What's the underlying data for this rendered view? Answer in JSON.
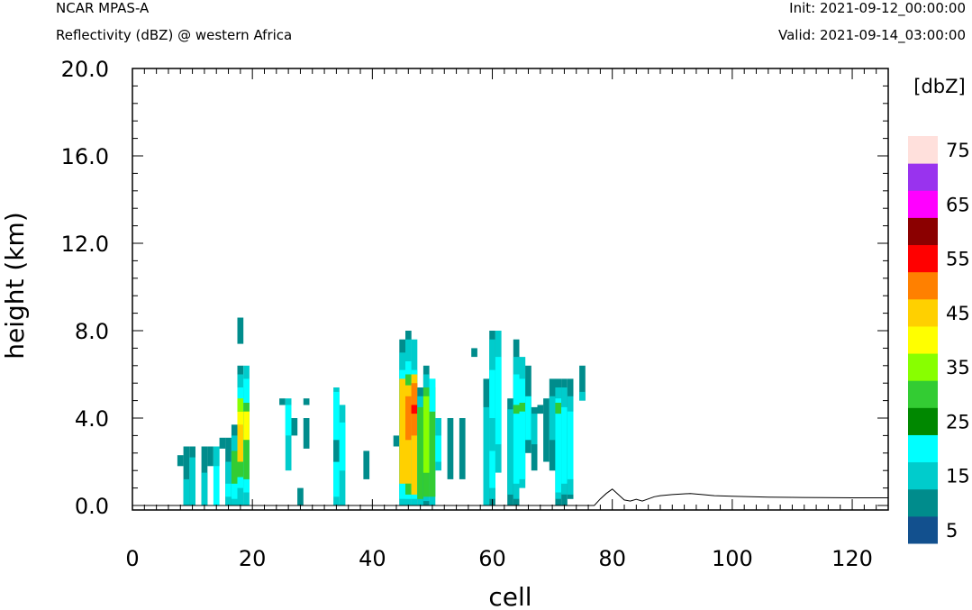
{
  "header": {
    "model": "NCAR MPAS-A",
    "field": "Reflectivity (dBZ) @ western Africa",
    "init": "Init: 2021-09-12_00:00:00",
    "valid": "Valid: 2021-09-14_03:00:00"
  },
  "chart_data": {
    "type": "heatmap",
    "xlabel": "cell",
    "ylabel": "height (km)",
    "xlim": [
      0,
      126
    ],
    "ylim": [
      0,
      20
    ],
    "x_ticks": [
      "0",
      "20",
      "40",
      "60",
      "80",
      "100",
      "120"
    ],
    "y_ticks": [
      "0.0",
      "4.0",
      "8.0",
      "12.0",
      "16.0",
      "20.0"
    ],
    "colorbar": {
      "unit_label": "[dbZ]",
      "labels": [
        "5",
        "15",
        "25",
        "35",
        "45",
        "55",
        "65",
        "75"
      ],
      "levels": [
        5,
        10,
        15,
        20,
        25,
        30,
        35,
        40,
        45,
        50,
        55,
        60,
        65,
        70,
        75
      ],
      "colors": [
        "#12508e",
        "#008c8c",
        "#00cccc",
        "#00ffff",
        "#008800",
        "#33cc33",
        "#88ff00",
        "#ffff00",
        "#ffd000",
        "#ff8000",
        "#ff0000",
        "#8b0000",
        "#ff00ff",
        "#9933ee",
        "#ffe0dc"
      ]
    },
    "columns": [
      {
        "x": 8,
        "segs": [
          [
            1.8,
            2.3,
            1
          ]
        ]
      },
      {
        "x": 9,
        "segs": [
          [
            0,
            2.7,
            1
          ],
          [
            0,
            1.2,
            2
          ]
        ]
      },
      {
        "x": 10,
        "segs": [
          [
            0,
            2.7,
            1
          ],
          [
            0,
            2.2,
            2
          ]
        ]
      },
      {
        "x": 12,
        "segs": [
          [
            0,
            2.7,
            1
          ],
          [
            0,
            1.5,
            2
          ]
        ]
      },
      {
        "x": 13,
        "segs": [
          [
            1.8,
            2.7,
            1
          ]
        ]
      },
      {
        "x": 14,
        "segs": [
          [
            0,
            2.7,
            3
          ],
          [
            1.8,
            2.7,
            2
          ]
        ]
      },
      {
        "x": 15,
        "segs": [
          [
            2.6,
            3.1,
            1
          ]
        ]
      },
      {
        "x": 16,
        "segs": [
          [
            0,
            3.1,
            1
          ],
          [
            0,
            2.0,
            2
          ],
          [
            0.4,
            1.0,
            3
          ]
        ]
      },
      {
        "x": 17,
        "segs": [
          [
            0,
            3.7,
            1
          ],
          [
            0,
            3.2,
            2
          ],
          [
            0.3,
            2.4,
            3
          ],
          [
            1.0,
            2.5,
            5
          ]
        ]
      },
      {
        "x": 18,
        "segs": [
          [
            0,
            6.4,
            1
          ],
          [
            0,
            6.0,
            2
          ],
          [
            0.8,
            5.4,
            3
          ],
          [
            1.3,
            4.5,
            5
          ],
          [
            2.0,
            4.0,
            8
          ],
          [
            3.7,
            4.3,
            7
          ],
          [
            4.3,
            4.9,
            6
          ]
        ]
      },
      {
        "x": 18,
        "segs": [
          [
            7.4,
            8.6,
            1
          ]
        ]
      },
      {
        "x": 19,
        "segs": [
          [
            0,
            6.4,
            2
          ],
          [
            0.6,
            5.8,
            3
          ],
          [
            1.2,
            4.7,
            5
          ],
          [
            3.0,
            4.3,
            7
          ]
        ]
      },
      {
        "x": 25,
        "segs": [
          [
            4.6,
            4.9,
            1
          ]
        ]
      },
      {
        "x": 26,
        "segs": [
          [
            1.6,
            4.9,
            2
          ],
          [
            3.2,
            4.6,
            3
          ]
        ]
      },
      {
        "x": 27,
        "segs": [
          [
            3.2,
            4.0,
            1
          ]
        ]
      },
      {
        "x": 28,
        "segs": [
          [
            0,
            0.8,
            1
          ]
        ]
      },
      {
        "x": 29,
        "segs": [
          [
            2.6,
            4.0,
            1
          ],
          [
            4.6,
            4.9,
            1
          ]
        ]
      },
      {
        "x": 34,
        "segs": [
          [
            0,
            5.4,
            2
          ],
          [
            0.4,
            5.2,
            3
          ],
          [
            2.0,
            3.0,
            1
          ]
        ]
      },
      {
        "x": 35,
        "segs": [
          [
            0,
            4.6,
            2
          ],
          [
            1.6,
            3.8,
            3
          ]
        ]
      },
      {
        "x": 39,
        "segs": [
          [
            1.2,
            2.5,
            1
          ]
        ]
      },
      {
        "x": 44,
        "segs": [
          [
            2.7,
            3.2,
            1
          ]
        ]
      },
      {
        "x": 45,
        "segs": [
          [
            0,
            7.6,
            1
          ],
          [
            0,
            7.0,
            2
          ],
          [
            0.3,
            6.2,
            3
          ],
          [
            1.0,
            5.8,
            8
          ]
        ]
      },
      {
        "x": 46,
        "segs": [
          [
            0,
            8.0,
            1
          ],
          [
            0,
            7.6,
            2
          ],
          [
            0.3,
            6.6,
            3
          ],
          [
            0.5,
            6.0,
            5
          ],
          [
            1.0,
            5.5,
            8
          ],
          [
            3.0,
            5.0,
            9
          ]
        ]
      },
      {
        "x": 47,
        "segs": [
          [
            0,
            7.6,
            2
          ],
          [
            0.3,
            6.2,
            3
          ],
          [
            0.5,
            6.0,
            8
          ],
          [
            3.2,
            5.6,
            9
          ],
          [
            4.2,
            4.6,
            10
          ]
        ]
      },
      {
        "x": 48,
        "segs": [
          [
            0,
            5.4,
            1
          ],
          [
            0,
            5.0,
            2
          ],
          [
            0.3,
            4.5,
            5
          ]
        ]
      },
      {
        "x": 49,
        "segs": [
          [
            0,
            6.4,
            1
          ],
          [
            0.2,
            6.0,
            2
          ],
          [
            0.4,
            5.4,
            5
          ],
          [
            1.5,
            5.0,
            6
          ]
        ]
      },
      {
        "x": 50,
        "segs": [
          [
            0,
            5.8,
            2
          ],
          [
            0.4,
            5.4,
            5
          ],
          [
            4.3,
            5.8,
            3
          ]
        ]
      },
      {
        "x": 51,
        "segs": [
          [
            1.6,
            4.0,
            2
          ],
          [
            2.0,
            3.2,
            3
          ]
        ]
      },
      {
        "x": 53,
        "segs": [
          [
            1.2,
            4.0,
            1
          ]
        ]
      },
      {
        "x": 55,
        "segs": [
          [
            1.2,
            4.0,
            1
          ]
        ]
      },
      {
        "x": 57,
        "segs": [
          [
            6.8,
            7.2,
            1
          ]
        ]
      },
      {
        "x": 59,
        "segs": [
          [
            0,
            5.8,
            1
          ],
          [
            0,
            4.5,
            2
          ]
        ]
      },
      {
        "x": 60,
        "segs": [
          [
            0,
            8.0,
            1
          ],
          [
            0.3,
            7.6,
            2
          ],
          [
            0.8,
            6.2,
            3
          ],
          [
            2.5,
            4.0,
            2
          ]
        ]
      },
      {
        "x": 61,
        "segs": [
          [
            1.5,
            8.0,
            2
          ],
          [
            2.8,
            6.8,
            3
          ]
        ]
      },
      {
        "x": 63,
        "segs": [
          [
            0,
            4.9,
            1
          ],
          [
            0.5,
            4.4,
            2
          ]
        ]
      },
      {
        "x": 64,
        "segs": [
          [
            0,
            7.6,
            1
          ],
          [
            0.3,
            6.8,
            2
          ],
          [
            1.0,
            6.0,
            3
          ],
          [
            4.2,
            4.6,
            5
          ]
        ]
      },
      {
        "x": 65,
        "segs": [
          [
            0.8,
            6.8,
            2
          ],
          [
            1.2,
            5.8,
            3
          ],
          [
            4.3,
            4.7,
            5
          ]
        ]
      },
      {
        "x": 66,
        "segs": [
          [
            2.4,
            6.4,
            1
          ],
          [
            3.0,
            5.0,
            3
          ]
        ]
      },
      {
        "x": 67,
        "segs": [
          [
            1.6,
            4.5,
            1
          ],
          [
            2.8,
            4.2,
            2
          ]
        ]
      },
      {
        "x": 68,
        "segs": [
          [
            4.2,
            4.6,
            1
          ]
        ]
      },
      {
        "x": 69,
        "segs": [
          [
            2.0,
            4.9,
            1
          ]
        ]
      },
      {
        "x": 70,
        "segs": [
          [
            1.6,
            5.8,
            1
          ],
          [
            3.0,
            5.0,
            2
          ]
        ]
      },
      {
        "x": 71,
        "segs": [
          [
            0,
            5.8,
            1
          ],
          [
            0.3,
            5.4,
            2
          ],
          [
            0.6,
            4.9,
            3
          ],
          [
            4.2,
            4.7,
            5
          ]
        ]
      },
      {
        "x": 72,
        "segs": [
          [
            0,
            5.8,
            1
          ],
          [
            0.5,
            5.4,
            2
          ],
          [
            1.0,
            4.5,
            3
          ]
        ]
      },
      {
        "x": 73,
        "segs": [
          [
            0.3,
            5.8,
            1
          ],
          [
            0.5,
            5.0,
            2
          ],
          [
            1.2,
            4.3,
            3
          ]
        ]
      },
      {
        "x": 75,
        "segs": [
          [
            4.8,
            6.4,
            1
          ],
          [
            4.8,
            5.2,
            2
          ]
        ]
      }
    ],
    "terrain": {
      "x": [
        0,
        77,
        78,
        79,
        80,
        81,
        82,
        83,
        84,
        85,
        86,
        87,
        88,
        90,
        93,
        95,
        97,
        100,
        103,
        106,
        110,
        115,
        120,
        126
      ],
      "y": [
        0,
        0,
        0.3,
        0.55,
        0.75,
        0.5,
        0.25,
        0.2,
        0.28,
        0.2,
        0.3,
        0.4,
        0.45,
        0.5,
        0.55,
        0.5,
        0.45,
        0.42,
        0.4,
        0.38,
        0.37,
        0.36,
        0.35,
        0.35
      ]
    }
  }
}
